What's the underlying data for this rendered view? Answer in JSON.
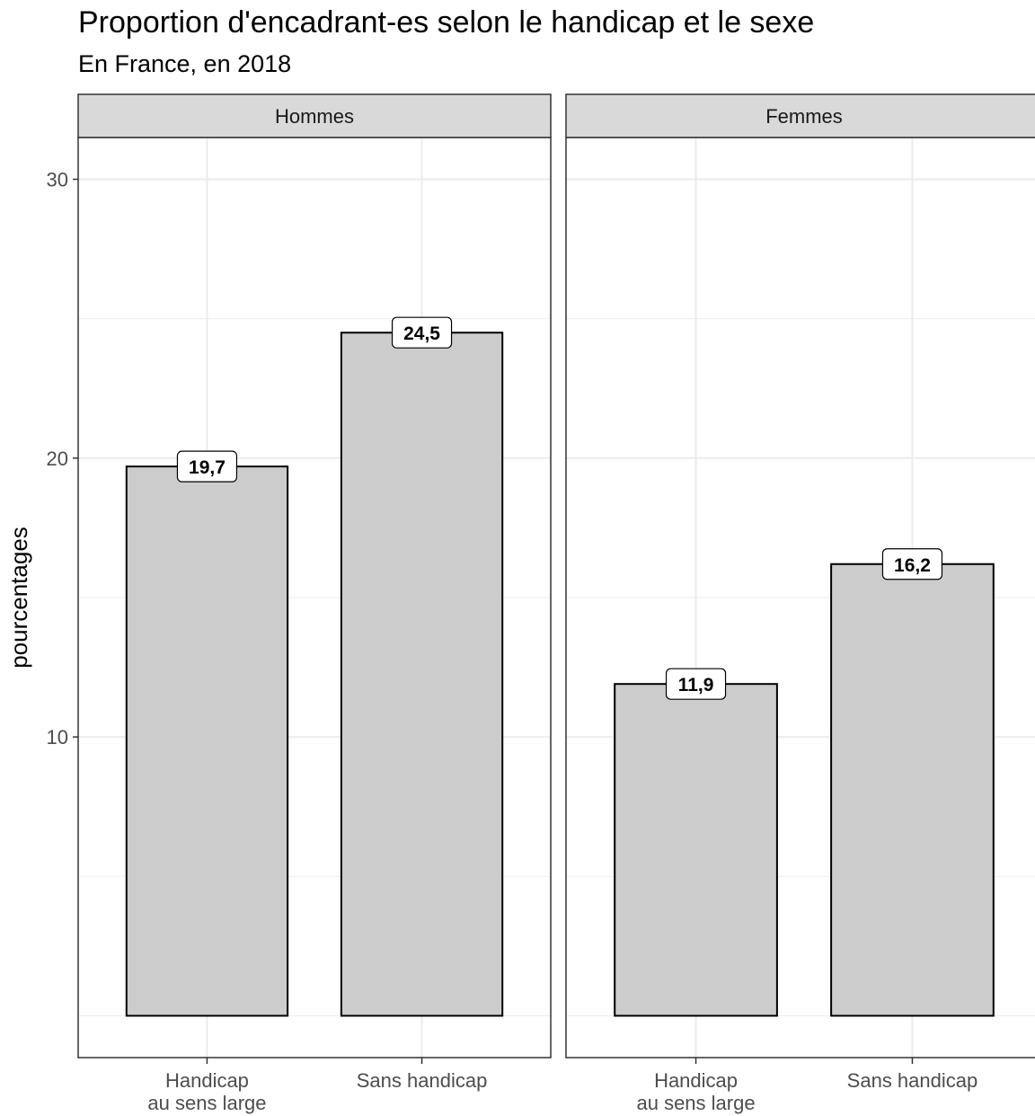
{
  "chart_data": {
    "type": "bar",
    "title": "Proportion d'encadrant-es selon le handicap et le sexe",
    "subtitle": "En France, en 2018",
    "ylabel": "pourcentages",
    "xlabel": "",
    "ylim": [
      -1.5,
      31.5
    ],
    "yticks": [
      10,
      20,
      30
    ],
    "ytick_labels": [
      "10",
      "20",
      "30"
    ],
    "grid": true,
    "categories": [
      "Handicap\nau sens large",
      "Sans handicap"
    ],
    "facets": [
      {
        "label": "Hommes",
        "values": [
          19.7,
          24.5
        ],
        "value_labels": [
          "19,7",
          "24,5"
        ]
      },
      {
        "label": "Femmes",
        "values": [
          11.9,
          16.2
        ],
        "value_labels": [
          "11,9",
          "16,2"
        ]
      }
    ],
    "bar_fill": "#cccccc",
    "bar_stroke": "#000000",
    "strip_fill": "#d9d9d9",
    "grid_color": "#ebebeb"
  }
}
